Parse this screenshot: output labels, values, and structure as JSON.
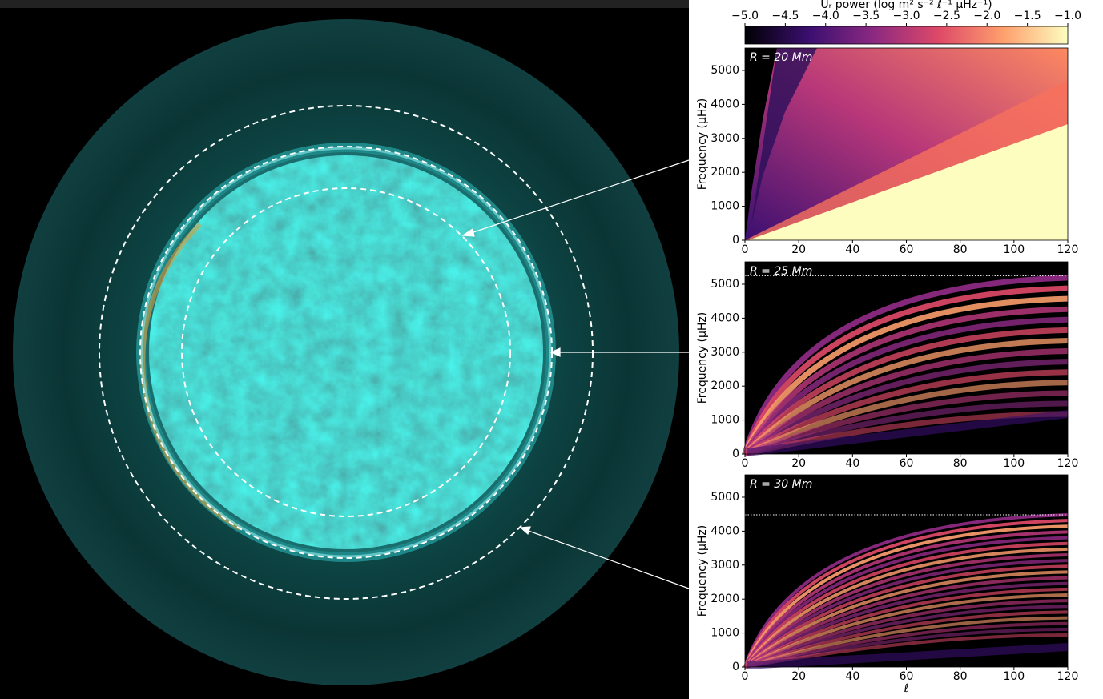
{
  "chart_data": [
    {
      "type": "heatmap",
      "annotation": "R = 20 Mm",
      "ylabel": "Frequency (μHz)",
      "xlim": [
        0,
        120
      ],
      "xticks": [
        0,
        20,
        40,
        60,
        80,
        100,
        120
      ],
      "ylim": [
        0,
        5660
      ],
      "yticks": [
        0,
        1000,
        2000,
        3000,
        4000,
        5000
      ],
      "colorbar": {
        "label": "Uᵣ power (log m² s⁻² ℓ⁻¹ μHz⁻¹)",
        "lim": [
          -5.0,
          -1.0
        ],
        "ticks": [
          {
            "value": -5.0,
            "label": "−5.0"
          },
          {
            "value": -4.5,
            "label": "−4.5"
          },
          {
            "value": -4.0,
            "label": "−4.0"
          },
          {
            "value": -3.5,
            "label": "−3.5"
          },
          {
            "value": -3.0,
            "label": "−3.0"
          },
          {
            "value": -2.5,
            "label": "−2.5"
          },
          {
            "value": -2.0,
            "label": "−2.0"
          },
          {
            "value": -1.5,
            "label": "−1.5"
          },
          {
            "value": -1.0,
            "label": "−1.0"
          }
        ],
        "colors": [
          "#000004",
          "#3b0f70",
          "#8c2981",
          "#de4968",
          "#fe9f6d",
          "#fcfdbf"
        ]
      }
    },
    {
      "type": "heatmap",
      "annotation": "R = 25 Mm",
      "ylabel": "Frequency (μHz)",
      "xlim": [
        0,
        120
      ],
      "xticks": [
        0,
        20,
        40,
        60,
        80,
        100,
        120
      ],
      "ylim": [
        0,
        5660
      ],
      "yticks": [
        0,
        1000,
        2000,
        3000,
        4000,
        5000
      ],
      "cutoff": 5250
    },
    {
      "type": "heatmap",
      "annotation": "R = 30 Mm",
      "ylabel": "Frequency (μHz)",
      "xlabel": "ℓ",
      "xlim": [
        0,
        120
      ],
      "xticks": [
        0,
        20,
        40,
        60,
        80,
        100,
        120
      ],
      "ylim": [
        0,
        5660
      ],
      "yticks": [
        0,
        1000,
        2000,
        3000,
        4000,
        5000
      ],
      "cutoff": 4480
    }
  ]
}
